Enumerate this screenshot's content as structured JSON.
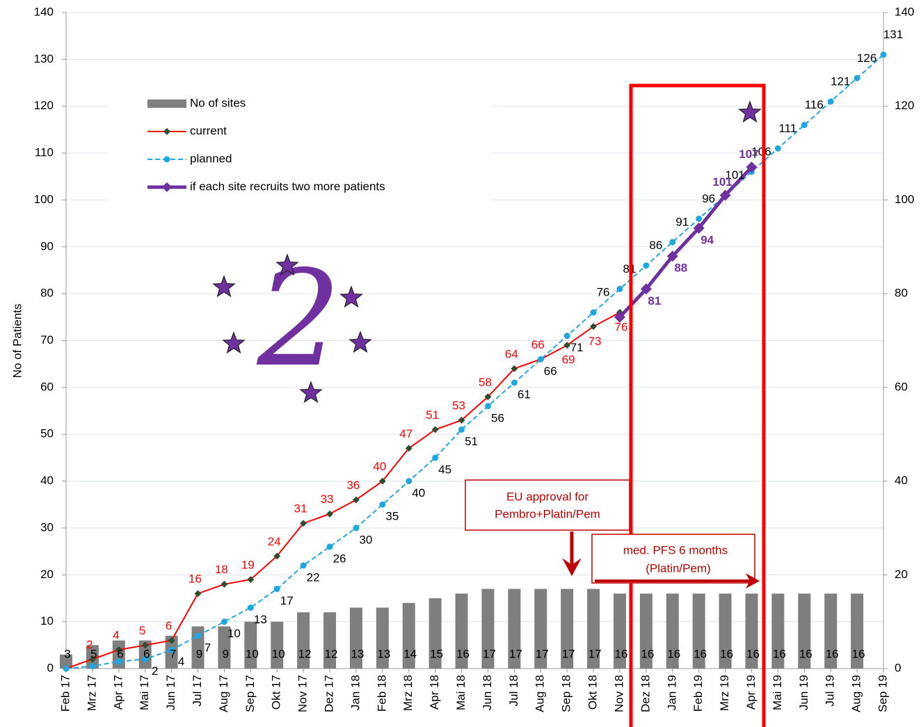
{
  "chart_data": {
    "type": "combo",
    "y_label": "No of Patients",
    "categories": [
      "Feb 17",
      "Mrz 17",
      "Apr 17",
      "Mai 17",
      "Jun 17",
      "Jul 17",
      "Aug 17",
      "Sep 17",
      "Okt 17",
      "Nov 17",
      "Dez 17",
      "Jan 18",
      "Feb 18",
      "Mrz 18",
      "Apr 18",
      "Mai 18",
      "Jun 18",
      "Jul 18",
      "Aug 18",
      "Sep 18",
      "Okt 18",
      "Nov 18",
      "Dez 18",
      "Jan 19",
      "Feb 19",
      "Mrz 19",
      "Apr 19",
      "Mai 19",
      "Jun 19",
      "Jul 19",
      "Aug 19",
      "Sep 19"
    ],
    "ylim": [
      0,
      140
    ],
    "yticks": [
      0,
      10,
      20,
      30,
      40,
      50,
      60,
      70,
      80,
      90,
      100,
      110,
      120,
      130,
      140
    ],
    "y2lim": [
      0,
      140
    ],
    "y2ticks": [
      0,
      20,
      40,
      60,
      80,
      100,
      120,
      140
    ],
    "grid": true,
    "series": [
      {
        "name": "No of sites",
        "type": "bar",
        "axis": "y2",
        "color": "#7f7f7f",
        "label_color": "#000000",
        "values": [
          3,
          5,
          6,
          6,
          7,
          9,
          9,
          10,
          10,
          12,
          12,
          13,
          13,
          14,
          15,
          16,
          17,
          17,
          17,
          17,
          17,
          16,
          16,
          16,
          16,
          16,
          16,
          16,
          16,
          16,
          16,
          null
        ]
      },
      {
        "name": "current",
        "type": "line",
        "color": "#ff0000",
        "marker": "diamond",
        "marker_color": "#2f4f2f",
        "label_color": "#ff0000",
        "values": [
          0,
          2,
          4,
          5,
          6,
          16,
          18,
          19,
          24,
          31,
          33,
          36,
          40,
          47,
          51,
          53,
          58,
          64,
          66,
          69,
          73,
          76,
          null,
          null,
          null,
          null,
          null,
          null,
          null,
          null,
          null,
          null
        ]
      },
      {
        "name": "planned",
        "type": "line",
        "dash": true,
        "color": "#1fa8e0",
        "marker": "circle",
        "marker_color": "#1fa8e0",
        "label_color": "#000000",
        "values": [
          0,
          0.5,
          1.5,
          2,
          4,
          7,
          10,
          13,
          17,
          22,
          26,
          30,
          35,
          40,
          45,
          51,
          56,
          61,
          66,
          71,
          76,
          81,
          86,
          91,
          96,
          101,
          106,
          111,
          116,
          121,
          126,
          131
        ]
      },
      {
        "name": "if each site recruits two more patients",
        "type": "line",
        "bold": true,
        "color": "#7030a0",
        "marker": "diamond",
        "marker_color": "#7030a0",
        "label_color": "#7030a0",
        "values": [
          null,
          null,
          null,
          null,
          null,
          null,
          null,
          null,
          null,
          null,
          null,
          null,
          null,
          null,
          null,
          null,
          null,
          null,
          null,
          null,
          null,
          75,
          81,
          88,
          94,
          101,
          107,
          null,
          null,
          null,
          null,
          null
        ]
      }
    ],
    "annotations": [
      {
        "lines": [
          "2"
        ]
      },
      {
        "lines": [
          "EU approval for",
          "Pembro+Platin/Pem"
        ]
      },
      {
        "lines": [
          "med. PFS 6 months",
          "(Platin/Pem)"
        ]
      }
    ]
  }
}
